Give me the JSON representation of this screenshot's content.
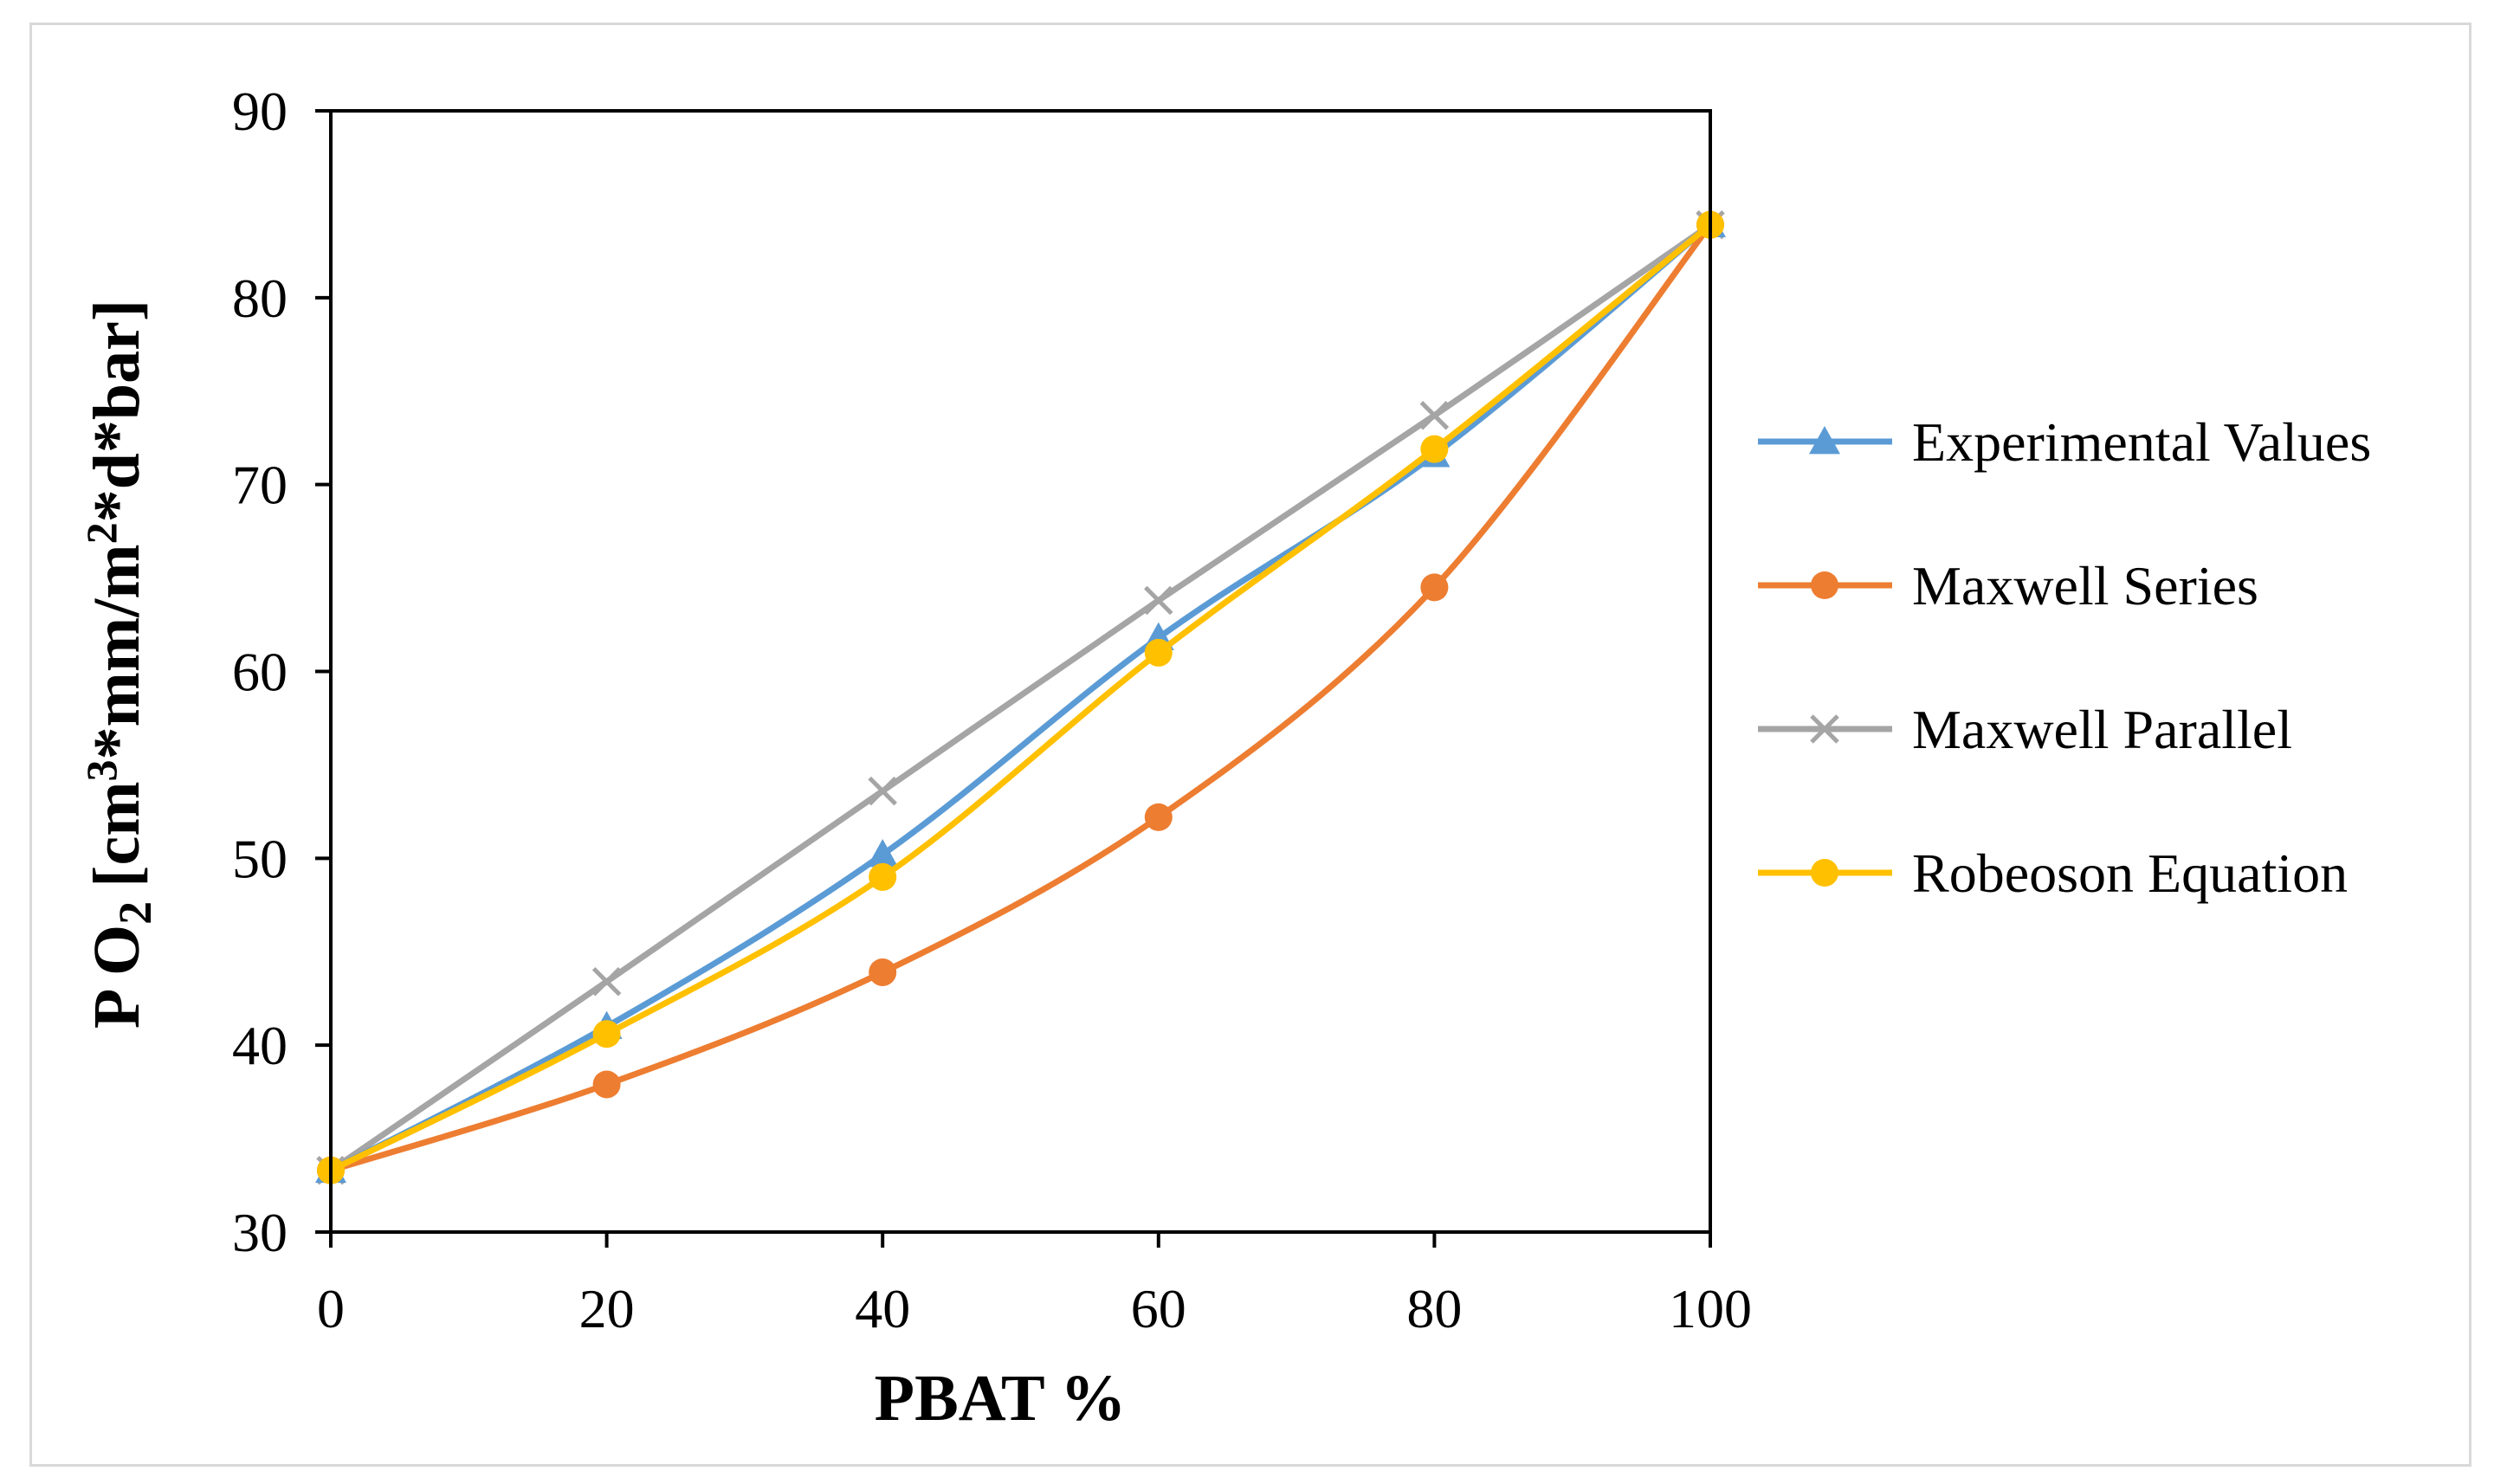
{
  "chart_data": {
    "type": "line",
    "title": "",
    "xlabel": "PBAT %",
    "ylabel_parts": {
      "main": "P O",
      "sub": "2",
      "bracket": "[cm",
      "sup": "3",
      "rest": "*mm/m",
      "sup2": "2",
      "tail": "*d*bar]"
    },
    "x": [
      0,
      20,
      40,
      60,
      80,
      100
    ],
    "x_ticks": [
      "0",
      "20",
      "40",
      "60",
      "80",
      "100"
    ],
    "y_ticks": [
      "30",
      "40",
      "50",
      "60",
      "70",
      "80",
      "90"
    ],
    "xlim": [
      0,
      100
    ],
    "ylim": [
      30,
      90
    ],
    "grid": false,
    "legend_position": "right",
    "series": [
      {
        "name": "Experimental Values",
        "values": [
          33.3,
          41.0,
          50.2,
          61.8,
          71.6,
          83.9
        ],
        "color": "#5b9bd5",
        "marker": "triangle"
      },
      {
        "name": "Maxwell Series",
        "values": [
          33.3,
          37.9,
          43.9,
          52.2,
          64.5,
          83.9
        ],
        "color": "#ed7d31",
        "marker": "circle"
      },
      {
        "name": "Maxwell Parallel",
        "values": [
          33.3,
          43.4,
          53.6,
          63.8,
          73.7,
          83.9
        ],
        "color": "#a5a5a5",
        "marker": "x"
      },
      {
        "name": "Robeoson Equation",
        "values": [
          33.3,
          40.6,
          49.0,
          61.0,
          71.9,
          83.9
        ],
        "color": "#ffc000",
        "marker": "circle"
      }
    ]
  }
}
